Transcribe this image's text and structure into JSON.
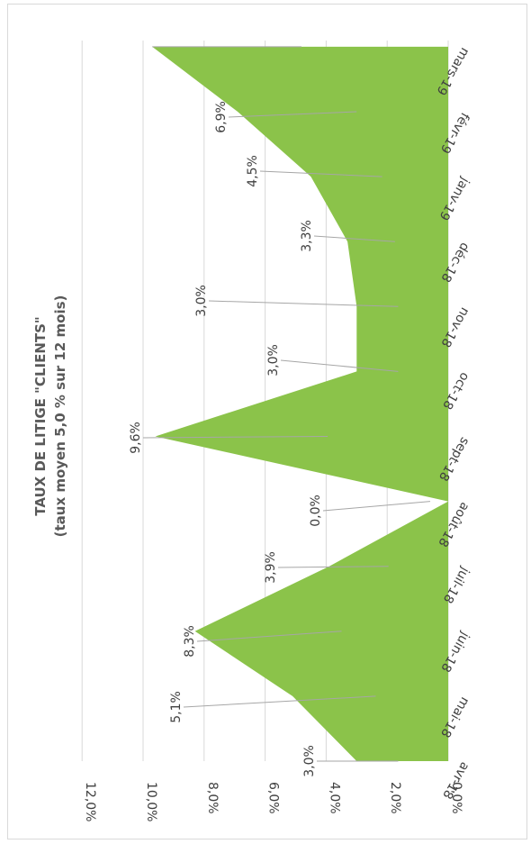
{
  "chart_data": {
    "type": "area",
    "title": "TAUX DE LITIGE \"CLIENTS\"",
    "subtitle": "(taux moyen 5,0 % sur 12 mois)",
    "categories": [
      "avr-18",
      "mai-18",
      "juin-18",
      "juil-18",
      "août-18",
      "sept-18",
      "oct-18",
      "nov-18",
      "déc-18",
      "janv-19",
      "févr-19",
      "mars-19"
    ],
    "series": [
      {
        "values": [
          3.0,
          5.1,
          8.3,
          3.9,
          0.0,
          9.6,
          3.0,
          3.0,
          3.3,
          4.5,
          6.9,
          9.7
        ],
        "labels": [
          "3,0%",
          "5,1%",
          "8,3%",
          "3,9%",
          "0,0%",
          "9,6%",
          "3,0%",
          "3,0%",
          "3,3%",
          "4,5%",
          "6,9%",
          ""
        ]
      }
    ],
    "y_ticks": [
      "0,0%",
      "2,0%",
      "4,0%",
      "6,0%",
      "8,0%",
      "10,0%",
      "12,0%"
    ],
    "ylim": [
      0,
      12
    ],
    "grid": true,
    "rotation": "rotated 90 degrees clockwise",
    "colors": {
      "area": "#8bc34a",
      "grid": "#d9d9d9",
      "leader": "#a6a6a6",
      "text": "#404040",
      "title": "#595959"
    }
  }
}
